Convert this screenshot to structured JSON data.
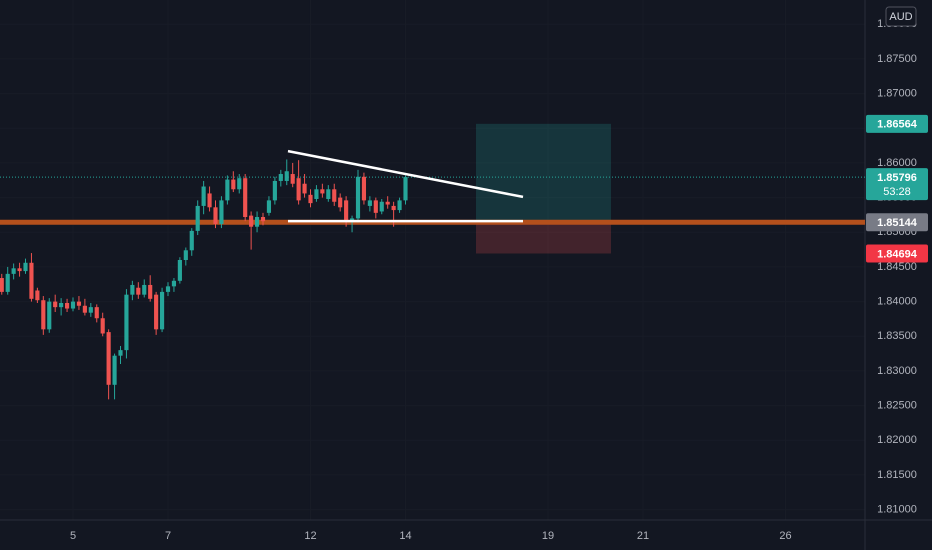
{
  "chart_data": {
    "type": "candlestick",
    "currency": "AUD",
    "up_color": "#26a69a",
    "down_color": "#ef5350",
    "x": [
      -1.5,
      -1.375,
      -1.25,
      -1.125,
      -1,
      -0.875,
      -0.75,
      -0.625,
      -0.5,
      -0.375,
      -0.25,
      -0.125,
      0,
      0.125,
      0.25,
      0.375,
      0.5,
      0.625,
      0.75,
      0.875,
      1,
      1.125,
      1.25,
      1.375,
      1.5,
      1.625,
      1.75,
      1.875,
      2,
      2.125,
      2.25,
      2.375,
      2.5,
      2.625,
      2.75,
      2.875,
      3,
      3.125,
      3.25,
      3.375,
      3.5,
      3.625,
      3.75,
      3.875,
      4,
      4.125,
      4.25,
      4.375,
      4.5,
      4.625,
      4.75,
      4.875,
      5,
      5.125,
      5.25,
      5.375,
      5.5,
      5.625,
      5.75,
      5.875,
      6,
      6.125,
      6.25,
      6.375,
      6.5,
      6.625,
      6.75,
      6.875,
      7
    ],
    "open": [
      1.8434,
      1.8414,
      1.844,
      1.8448,
      1.8444,
      1.8456,
      1.8416,
      1.8402,
      1.836,
      1.84,
      1.8392,
      1.8398,
      1.839,
      1.84,
      1.8394,
      1.8384,
      1.8392,
      1.8376,
      1.8356,
      1.828,
      1.8322,
      1.833,
      1.841,
      1.842,
      1.841,
      1.8424,
      1.841,
      1.836,
      1.8414,
      1.8422,
      1.843,
      1.846,
      1.8474,
      1.8502,
      1.8538,
      1.8556,
      1.8536,
      1.8512,
      1.8546,
      1.8576,
      1.8562,
      1.8578,
      1.8524,
      1.8508,
      1.8522,
      1.8528,
      1.8546,
      1.8574,
      1.8574,
      1.8584,
      1.8578,
      1.857,
      1.8554,
      1.8548,
      1.8562,
      1.8548,
      1.8562,
      1.855,
      1.8546,
      1.8516,
      1.852,
      1.858,
      1.8538,
      1.8546,
      1.853,
      1.8544,
      1.8538,
      1.8532,
      1.8546
    ],
    "high": [
      1.844,
      1.845,
      1.8455,
      1.8456,
      1.8462,
      1.847,
      1.842,
      1.8408,
      1.8405,
      1.841,
      1.8405,
      1.8404,
      1.8406,
      1.8408,
      1.8404,
      1.8398,
      1.8396,
      1.8384,
      1.836,
      1.8325,
      1.8336,
      1.8418,
      1.843,
      1.8428,
      1.8432,
      1.8438,
      1.8414,
      1.842,
      1.8428,
      1.8434,
      1.8464,
      1.8478,
      1.8506,
      1.8546,
      1.8574,
      1.8566,
      1.8546,
      1.8552,
      1.8582,
      1.8588,
      1.8584,
      1.8584,
      1.853,
      1.853,
      1.8528,
      1.8552,
      1.858,
      1.859,
      1.8605,
      1.86,
      1.8604,
      1.8584,
      1.8562,
      1.8568,
      1.857,
      1.8568,
      1.857,
      1.8556,
      1.8552,
      1.8524,
      1.859,
      1.8586,
      1.8552,
      1.855,
      1.8548,
      1.8552,
      1.8544,
      1.855,
      1.8582
    ],
    "low": [
      1.841,
      1.841,
      1.8432,
      1.8436,
      1.844,
      1.84,
      1.8398,
      1.8352,
      1.8355,
      1.8385,
      1.838,
      1.8385,
      1.8386,
      1.8388,
      1.838,
      1.8378,
      1.837,
      1.835,
      1.8259,
      1.8259,
      1.831,
      1.8318,
      1.8402,
      1.8404,
      1.8406,
      1.84,
      1.8352,
      1.8356,
      1.8408,
      1.8414,
      1.8426,
      1.8452,
      1.8466,
      1.8496,
      1.8526,
      1.853,
      1.8506,
      1.8506,
      1.854,
      1.8558,
      1.8556,
      1.8516,
      1.8475,
      1.85,
      1.851,
      1.8524,
      1.854,
      1.8566,
      1.8568,
      1.8565,
      1.854,
      1.855,
      1.8536,
      1.8544,
      1.855,
      1.8544,
      1.8538,
      1.853,
      1.8508,
      1.85,
      1.8514,
      1.854,
      1.853,
      1.852,
      1.8526,
      1.8534,
      1.8508,
      1.8528,
      1.854
    ],
    "close": [
      1.8414,
      1.844,
      1.8448,
      1.8444,
      1.8456,
      1.8404,
      1.8402,
      1.836,
      1.84,
      1.8392,
      1.8398,
      1.839,
      1.84,
      1.8394,
      1.8384,
      1.8392,
      1.8376,
      1.8354,
      1.828,
      1.8322,
      1.833,
      1.841,
      1.8424,
      1.841,
      1.8424,
      1.8404,
      1.836,
      1.8414,
      1.8422,
      1.843,
      1.846,
      1.8474,
      1.8502,
      1.8538,
      1.8566,
      1.8536,
      1.8512,
      1.8546,
      1.8576,
      1.8562,
      1.8578,
      1.8522,
      1.8508,
      1.8522,
      1.8516,
      1.8546,
      1.8574,
      1.8584,
      1.8588,
      1.857,
      1.8546,
      1.8556,
      1.8542,
      1.8562,
      1.8556,
      1.8562,
      1.8544,
      1.8536,
      1.8516,
      1.852,
      1.858,
      1.8546,
      1.8546,
      1.8528,
      1.8544,
      1.854,
      1.8532,
      1.8546,
      1.85796
    ],
    "xlim": [
      -1.537,
      16.674
    ],
    "xticks": [
      {
        "value": 0,
        "label": "5"
      },
      {
        "value": 2,
        "label": "7"
      },
      {
        "value": 5,
        "label": "12"
      },
      {
        "value": 7,
        "label": "14"
      },
      {
        "value": 10,
        "label": "19"
      },
      {
        "value": 12,
        "label": "21"
      },
      {
        "value": 15,
        "label": "26"
      }
    ],
    "ylim": [
      1.8085,
      1.8835
    ],
    "yticks": [
      {
        "value": 1.81,
        "label": "1.81000"
      },
      {
        "value": 1.815,
        "label": "1.81500"
      },
      {
        "value": 1.82,
        "label": "1.82000"
      },
      {
        "value": 1.825,
        "label": "1.82500"
      },
      {
        "value": 1.83,
        "label": "1.83000"
      },
      {
        "value": 1.835,
        "label": "1.83500"
      },
      {
        "value": 1.84,
        "label": "1.84000"
      },
      {
        "value": 1.845,
        "label": "1.84500"
      },
      {
        "value": 1.85,
        "label": "1.85000"
      },
      {
        "value": 1.855,
        "label": "1.85500"
      },
      {
        "value": 1.86,
        "label": "1.86000"
      },
      {
        "value": 1.865,
        "label": "1.86500"
      },
      {
        "value": 1.87,
        "label": "1.87000"
      },
      {
        "value": 1.875,
        "label": "1.87500"
      },
      {
        "value": 1.88,
        "label": "1.88000"
      }
    ],
    "grid": true,
    "level_line": {
      "value": 1.85144,
      "color": "#b4501c"
    },
    "trendlines": [
      {
        "x": [
          4.526,
          9.474
        ],
        "y": [
          1.8617,
          1.8551
        ],
        "color": "#ffffff"
      },
      {
        "x": [
          4.526,
          9.474
        ],
        "y": [
          1.8516,
          1.8516
        ],
        "color": "#ffffff"
      }
    ],
    "position": {
      "x": [
        8.484,
        11.326
      ],
      "target": 1.86564,
      "entry": 1.85144,
      "stop": 1.84694
    },
    "price_tags": [
      {
        "value": 1.86564,
        "color": "#26a69a"
      },
      {
        "value": 1.85144,
        "color": "#787b86"
      },
      {
        "value": 1.84694,
        "color": "#f23645"
      }
    ],
    "last_price": {
      "value": 1.85796,
      "countdown": "53:28",
      "color": "#26a69a"
    }
  }
}
